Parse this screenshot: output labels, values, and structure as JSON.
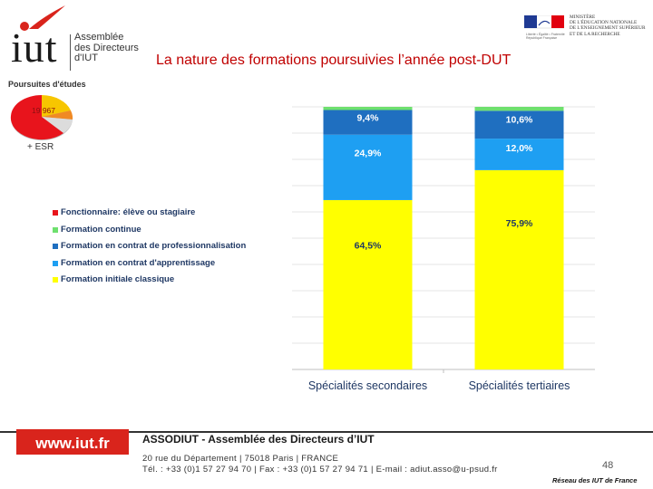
{
  "header": {
    "logo_text": "iut",
    "logo_subtitle_lines": [
      "Assemblée",
      "des Directeurs",
      "d'IUT"
    ],
    "title": "La nature des formations poursuivies l’année post-DUT",
    "ministry_lines": [
      "MINISTÈRE",
      "DE L'ÉDUCATION NATIONALE",
      "DE L'ENSEIGNEMENT SUPÉRIEUR",
      "ET DE LA RECHERCHE"
    ],
    "ministry_motto": "Liberté • Égalité • Fraternité République Française"
  },
  "inset_pie": {
    "title": "Poursuites d'études",
    "label": "19 967",
    "esr_label": "+ ESR"
  },
  "chart_data": {
    "type": "bar",
    "stacked": true,
    "categories": [
      "Spécialités secondaires",
      "Spécialités tertiaires"
    ],
    "series": [
      {
        "name": "Formation initiale classique",
        "color": "#ffff00",
        "values": [
          64.5,
          75.9
        ],
        "labels": [
          "64,5%",
          "75,9%"
        ]
      },
      {
        "name": "Formation en contrat d'apprentissage",
        "color": "#1e9ff2",
        "values": [
          24.9,
          12.0
        ],
        "labels": [
          "24,9%",
          "12,0%"
        ]
      },
      {
        "name": "Formation en contrat de professionnalisation",
        "color": "#1f6fc0",
        "values": [
          9.4,
          10.6
        ],
        "labels": [
          "9,4%",
          "10,6%"
        ]
      },
      {
        "name": "Formation continue",
        "color": "#6ee06e",
        "values": [
          1.2,
          1.5
        ],
        "labels": [
          "",
          ""
        ]
      },
      {
        "name": "Fonctionnaire: élève ou stagiaire",
        "color": "#e8141c",
        "values": [
          0.0,
          0.0
        ],
        "labels": [
          "",
          ""
        ]
      }
    ],
    "legend_order": [
      "Fonctionnaire: élève ou stagiaire",
      "Formation continue",
      "Formation en contrat de professionnalisation",
      "Formation en contrat d'apprentissage",
      "Formation initiale classique"
    ],
    "ylim": [
      0,
      100
    ],
    "gridlines": true,
    "legend_position": "left"
  },
  "footer": {
    "url": "www.iut.fr",
    "association": "ASSODIUT - Assemblée des Directeurs d’IUT",
    "address": "20 rue du Département | 75018 Paris | FRANCE",
    "contact": "Tél. : +33 (0)1 57 27 94 70 | Fax : +33 (0)1 57 27 94 71 | E-mail : adiut.asso@u-psud.fr",
    "page_number": "48",
    "network": "Réseau des IUT de France"
  },
  "colors": {
    "accent": "#d9241c",
    "title": "#c00000",
    "legend_text": "#1f3864"
  }
}
